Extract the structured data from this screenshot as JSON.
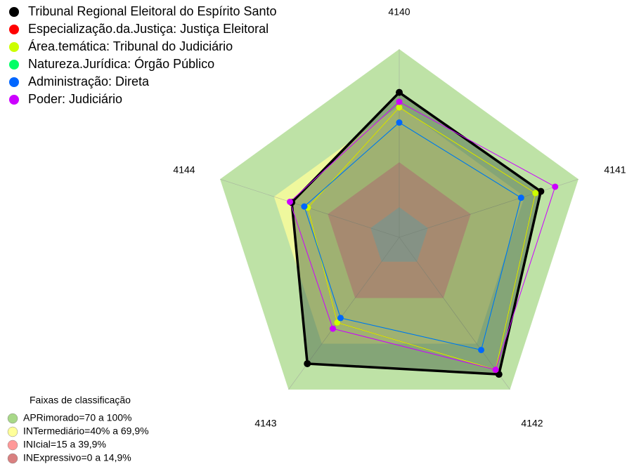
{
  "chart_data": {
    "type": "radar",
    "categories": [
      "4140",
      "4141",
      "4142",
      "4143",
      "4144"
    ],
    "rlim": [
      0,
      100
    ],
    "series": [
      {
        "name": "Tribunal Regional Eleitoral do Espírito Santo",
        "color": "#000000",
        "fill": "#3d5a3d",
        "values": [
          77,
          79,
          90,
          83,
          60
        ]
      },
      {
        "name": "Especialização.da.Justiça: Justiça Eleitoral",
        "color": "#ff0000",
        "values": [
          69,
          76,
          87,
          56,
          51
        ]
      },
      {
        "name": "Área.temática: Tribunal do Judiciário",
        "color": "#ccff00",
        "values": [
          69,
          76,
          87,
          56,
          51
        ]
      },
      {
        "name": "Natureza.Jurídica: Órgão Público",
        "color": "#00ff66",
        "values": [
          61,
          68,
          74,
          53,
          53
        ]
      },
      {
        "name": "Administração: Direta",
        "color": "#0066ff",
        "values": [
          61,
          68,
          74,
          53,
          53
        ]
      },
      {
        "name": "Poder: Judiciário",
        "color": "#cc00ff",
        "values": [
          72,
          87,
          87,
          60,
          61
        ]
      }
    ],
    "bands_title": "Faixas de classificação",
    "bands": [
      {
        "label": "APRimorado=70 a 100%",
        "upper": 100,
        "color": "#a8d888"
      },
      {
        "label": "INTermediário=40% a 69,9%",
        "upper": 69.9,
        "color": "#ffff99"
      },
      {
        "label": "INIcial=15 a 39,9%",
        "upper": 39.9,
        "color": "#ff9999"
      },
      {
        "label": "INExpressivo=0 a 14,9%",
        "upper": 14.9,
        "color": "#d98080"
      }
    ]
  }
}
